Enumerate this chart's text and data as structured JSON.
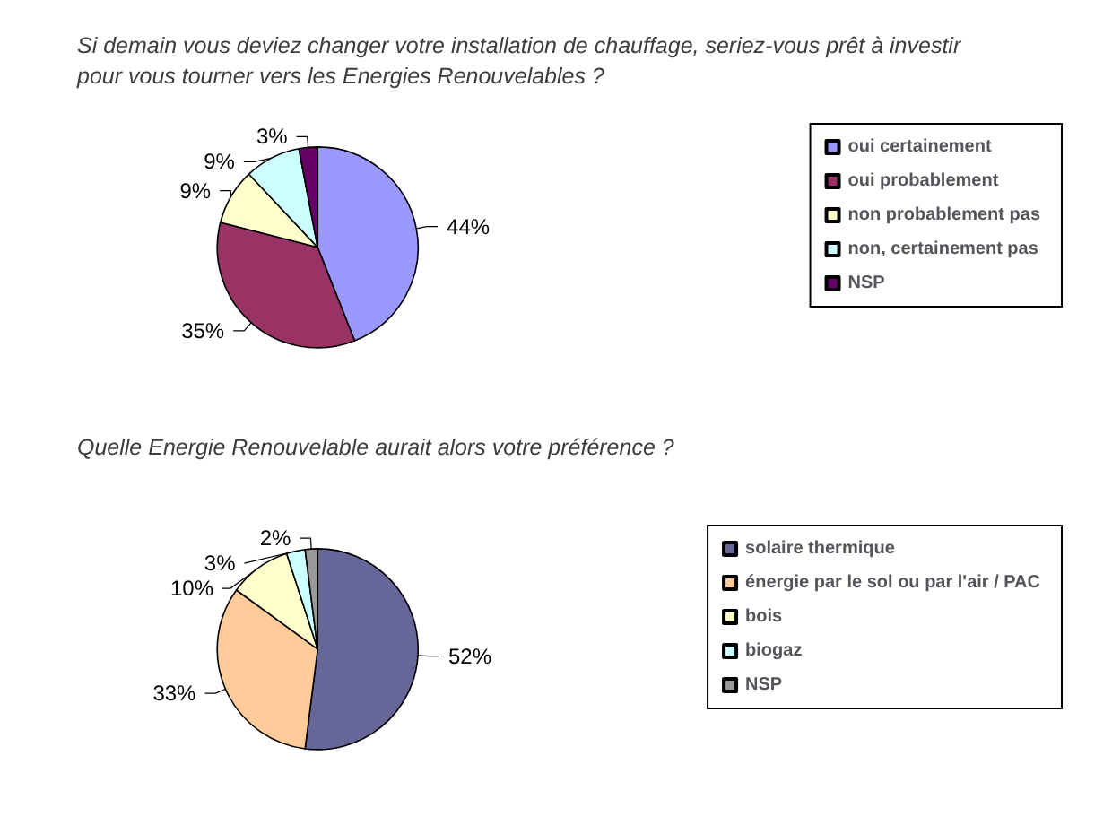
{
  "chart_data": [
    {
      "type": "pie",
      "title": "Si demain vous deviez changer votre installation de chauffage, seriez-vous prêt à investir pour vous tourner vers les Energies Renouvelables ?",
      "categories": [
        "oui certainement",
        "oui probablement",
        "non probablement pas",
        "non, certainement pas",
        "NSP"
      ],
      "values": [
        44,
        35,
        9,
        9,
        3
      ],
      "colors": [
        "#9999ff",
        "#993366",
        "#ffffcc",
        "#ccffff",
        "#660066"
      ],
      "value_labels": [
        "44%",
        "35%",
        "9%",
        "9%",
        "3%"
      ],
      "legend": "right"
    },
    {
      "type": "pie",
      "title": "Quelle Energie Renouvelable aurait alors votre préférence ?",
      "categories": [
        "solaire thermique",
        "énergie par le sol ou par l'air / PAC",
        "bois",
        "biogaz",
        "NSP"
      ],
      "values": [
        52,
        33,
        10,
        3,
        2
      ],
      "colors": [
        "#666699",
        "#ffcc99",
        "#ffffcc",
        "#ccffff",
        "#999999"
      ],
      "value_labels": [
        "52%",
        "33%",
        "10%",
        "3%",
        "2%"
      ],
      "legend": "right"
    }
  ]
}
